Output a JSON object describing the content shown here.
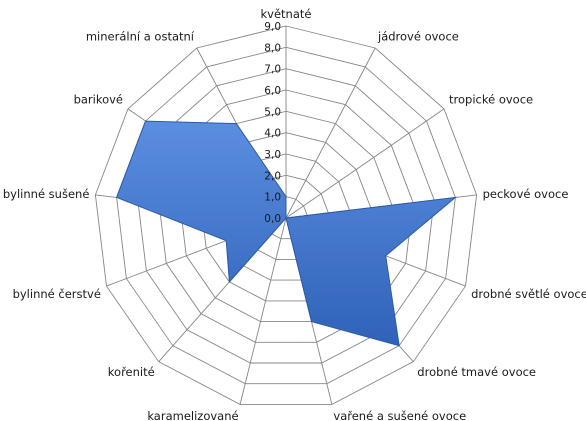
{
  "chart_data": {
    "type": "radar",
    "title": "",
    "categories": [
      "květnaté",
      "jádrové ovoce",
      "tropické ovoce",
      "peckové ovoce",
      "drobné světlé ovoce",
      "drobné tmavé ovoce",
      "vařené a sušené ovoce",
      "karamelizované",
      "kořenité",
      "bylinné čerstvé",
      "bylinné sušené",
      "barikové",
      "minerální a ostatní"
    ],
    "tick_labels": [
      "0,0",
      "1,0",
      "2,0",
      "3,0",
      "4,0",
      "5,0",
      "6,0",
      "7,0",
      "8,0",
      "9,0"
    ],
    "ylim": [
      0,
      9
    ],
    "grid": true,
    "legend": "none",
    "series": [
      {
        "values": [
          1.0,
          0.0,
          0.0,
          8.0,
          5.0,
          8.0,
          5.0,
          0.0,
          4.0,
          3.0,
          8.0,
          8.0,
          5.0
        ],
        "color": "#4472c4"
      }
    ]
  }
}
